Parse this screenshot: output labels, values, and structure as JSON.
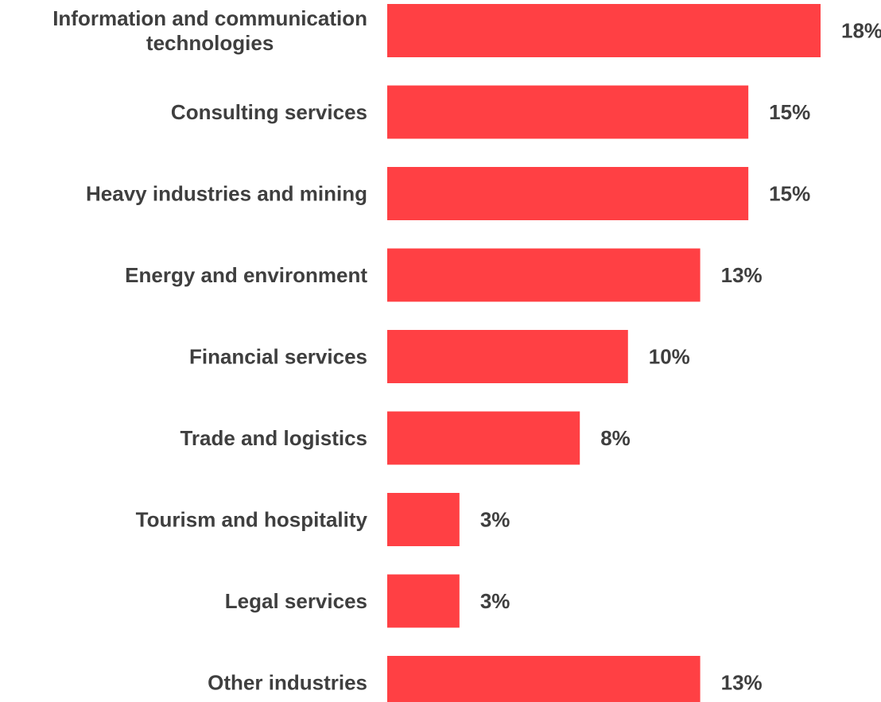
{
  "chart_data": {
    "type": "bar",
    "orientation": "horizontal",
    "categories": [
      "Information and communication technologies",
      "Consulting services",
      "Heavy industries and mining",
      "Energy and environment",
      "Financial services",
      "Trade and logistics",
      "Tourism and hospitality",
      "Legal services",
      "Other industries"
    ],
    "category_label_lines": [
      [
        "Information and communication",
        "technologies"
      ],
      [
        "Consulting services"
      ],
      [
        "Heavy industries and mining"
      ],
      [
        "Energy and environment"
      ],
      [
        "Financial services"
      ],
      [
        "Trade and logistics"
      ],
      [
        "Tourism and hospitality"
      ],
      [
        "Legal services"
      ],
      [
        "Other industries"
      ]
    ],
    "values": [
      18,
      15,
      15,
      13,
      10,
      8,
      3,
      3,
      13
    ],
    "value_labels": [
      "18%",
      "15%",
      "15%",
      "13%",
      "10%",
      "8%",
      "3%",
      "3%",
      "13%"
    ],
    "unit": "%",
    "xlim": [
      0,
      18
    ],
    "grid": false,
    "legend": "none",
    "title": "",
    "xlabel": "",
    "ylabel": "",
    "colors": {
      "bar": "#FF4044",
      "label_text": "#3F3F3F"
    }
  }
}
